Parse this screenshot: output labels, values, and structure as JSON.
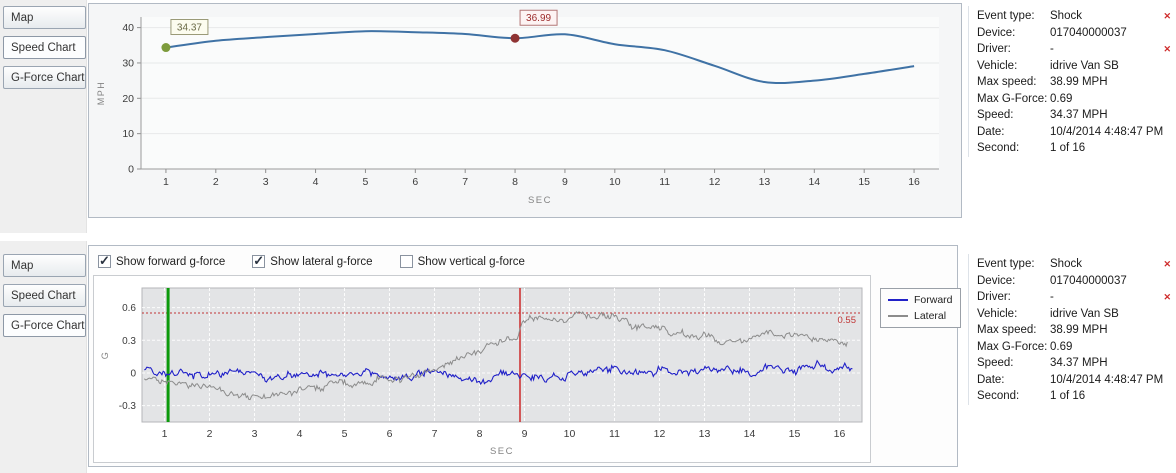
{
  "colors": {
    "speed_line": "#3f72a5",
    "forward_line": "#2121c8",
    "lateral_line": "#8c8c8c",
    "current_marker_green": "#0c9a0c",
    "event_marker_red": "#cc2a2a",
    "threshold_red": "#c03535",
    "panel_border": "#b2bac4",
    "plot_gray": "#e3e4e6"
  },
  "top_panel": {
    "tabs": [
      {
        "label": "Map",
        "active": false
      },
      {
        "label": "Speed Chart",
        "active": true
      },
      {
        "label": "G-Force Chart",
        "active": false
      }
    ]
  },
  "bottom_panel": {
    "tabs": [
      {
        "label": "Map",
        "active": false
      },
      {
        "label": "Speed Chart",
        "active": false
      },
      {
        "label": "G-Force Chart",
        "active": true
      }
    ],
    "checkboxes": [
      {
        "label": "Show forward g-force",
        "checked": true
      },
      {
        "label": "Show lateral g-force",
        "checked": true
      },
      {
        "label": "Show vertical g-force",
        "checked": false
      }
    ]
  },
  "info": {
    "rows": [
      {
        "label": "Event type:",
        "value": "Shock",
        "close_icon": true
      },
      {
        "label": "Device:",
        "value": "017040000037",
        "close_icon": false
      },
      {
        "label": "Driver:",
        "value": "-",
        "close_icon": true
      },
      {
        "label": "Vehicle:",
        "value": "idrive Van SB",
        "close_icon": false
      },
      {
        "label": "Max speed:",
        "value": "38.99 MPH",
        "close_icon": false
      },
      {
        "label": "Max G-Force:",
        "value": "0.69",
        "close_icon": false
      },
      {
        "label": "Speed:",
        "value": "34.37 MPH",
        "close_icon": false
      },
      {
        "label": "Date:",
        "value": "10/4/2014 4:48:47 PM",
        "close_icon": false
      },
      {
        "label": "Second:",
        "value": "1 of 16",
        "close_icon": false
      }
    ]
  },
  "chart_data": [
    {
      "type": "line",
      "title": "Speed Chart",
      "xlabel": "SEC",
      "ylabel": "MPH",
      "x": [
        1,
        2,
        3,
        4,
        5,
        6,
        7,
        8,
        9,
        10,
        11,
        12,
        13,
        14,
        15,
        16
      ],
      "values": [
        34.37,
        36.3,
        37.3,
        38.2,
        38.99,
        38.7,
        38.2,
        36.99,
        38.1,
        35.3,
        33.6,
        29.2,
        24.6,
        25.0,
        26.9,
        29.1
      ],
      "xticks": [
        1,
        2,
        3,
        4,
        5,
        6,
        7,
        8,
        9,
        10,
        11,
        12,
        13,
        14,
        15,
        16
      ],
      "yticks": [
        0,
        10,
        20,
        30,
        40
      ],
      "xlim": [
        0.5,
        16.5
      ],
      "ylim": [
        0,
        43
      ],
      "grid": false,
      "legend_position": "none",
      "line_color": "#3f72a5",
      "annotations": [
        {
          "name": "start-marker",
          "x": 1,
          "y": 34.37,
          "label": "34.37",
          "marker_color": "#7d9b3c",
          "text_color": "#6a6a45",
          "border_color": "#9a9a78",
          "bg": "#fcfcef"
        },
        {
          "name": "event-marker",
          "x": 8,
          "y": 36.99,
          "label": "36.99",
          "marker_color": "#8f3333",
          "text_color": "#9c2b2b",
          "border_color": "#b37676",
          "bg": "#fdf3f3"
        }
      ]
    },
    {
      "type": "line",
      "title": "G-Force Chart",
      "xlabel": "SEC",
      "ylabel": "G",
      "xticks": [
        1,
        2,
        3,
        4,
        5,
        6,
        7,
        8,
        9,
        10,
        11,
        12,
        13,
        14,
        15,
        16
      ],
      "yticks": [
        -0.3,
        0,
        0.3,
        0.6
      ],
      "xlim": [
        0.5,
        16.5
      ],
      "ylim": [
        -0.45,
        0.78
      ],
      "grid": true,
      "legend_position": "right",
      "series": [
        {
          "name": "Forward",
          "color": "#2121c8",
          "noise_amplitude": 0.055,
          "x": [
            0.55,
            1,
            1.5,
            2,
            2.5,
            3,
            3.5,
            4,
            4.5,
            5,
            5.5,
            6,
            6.5,
            7,
            7.5,
            8,
            8.5,
            9,
            9.5,
            10,
            10.5,
            11,
            11.5,
            12,
            12.5,
            13,
            13.5,
            14,
            14.5,
            15,
            15.5,
            16,
            16.3
          ],
          "y": [
            0.02,
            -0.02,
            0.0,
            -0.04,
            0.0,
            -0.02,
            -0.05,
            -0.02,
            0.0,
            -0.03,
            0.0,
            -0.04,
            -0.02,
            0.0,
            -0.05,
            -0.08,
            -0.02,
            0.0,
            -0.06,
            -0.02,
            0.02,
            0.04,
            -0.02,
            0.03,
            0.0,
            0.05,
            0.02,
            0.0,
            0.05,
            0.03,
            0.06,
            0.04,
            0.05
          ]
        },
        {
          "name": "Lateral",
          "color": "#8c8c8c",
          "noise_amplitude": 0.05,
          "x": [
            0.55,
            1,
            1.5,
            2,
            2.5,
            3,
            3.3,
            3.6,
            4,
            4.5,
            5,
            5.5,
            6,
            6.5,
            7,
            7.3,
            7.6,
            8,
            8.3,
            8.6,
            8.85,
            8.95,
            9.3,
            9.7,
            10,
            10.2,
            10.45,
            10.7,
            11,
            11.3,
            11.7,
            12,
            12.5,
            13,
            13.3,
            13.7,
            14,
            14.3,
            14.6,
            15,
            15.4,
            15.8,
            16.2
          ],
          "y": [
            -0.04,
            -0.06,
            -0.1,
            -0.13,
            -0.19,
            -0.23,
            -0.24,
            -0.21,
            -0.16,
            -0.12,
            -0.1,
            -0.09,
            -0.06,
            -0.03,
            0.02,
            0.08,
            0.14,
            0.22,
            0.27,
            0.3,
            0.33,
            0.48,
            0.5,
            0.47,
            0.52,
            0.58,
            0.52,
            0.55,
            0.5,
            0.46,
            0.42,
            0.4,
            0.36,
            0.33,
            0.3,
            0.28,
            0.3,
            0.4,
            0.34,
            0.36,
            0.32,
            0.3,
            0.28
          ]
        }
      ],
      "threshold_line": {
        "y": 0.55,
        "label": "0.55",
        "color": "#c03535"
      },
      "event_markers": [
        {
          "name": "current-second-marker",
          "x": 1.08,
          "color": "#0c9a0c",
          "width": 3
        },
        {
          "name": "shock-event-marker",
          "x": 8.9,
          "color": "#cc2a2a",
          "width": 1.5
        }
      ]
    }
  ]
}
